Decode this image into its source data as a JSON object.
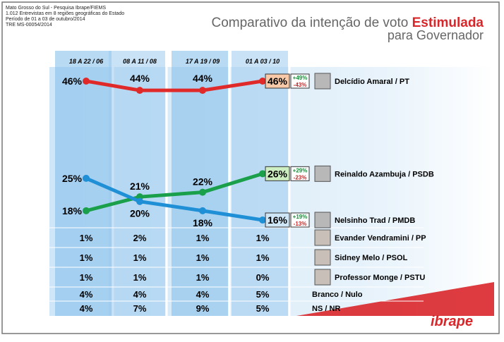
{
  "header": {
    "lines": [
      "Mato Grosso do Sul - Pesquisa Ibrape/FIEMS",
      "1.012 Entrevistas em 8 regiões geográficas do Estado",
      "Período de 01 a 03 de outubro/2014",
      "TRE MS-00054/2014"
    ],
    "logo": "ibrape"
  },
  "chart_data": {
    "type": "line",
    "title": "Comparativo da intenção de voto ",
    "title_emphasis": "Estimulada",
    "subtitle": "para Governador",
    "categories": [
      "18 A 22 / 06",
      "08 A 11 / 08",
      "17 A 19 / 09",
      "01 A 03 / 10"
    ],
    "ylim": [
      16,
      46
    ],
    "series": [
      {
        "name": "Delcídio Amaral / PT",
        "color": "#e02a2a",
        "values": [
          46,
          44,
          44,
          46
        ],
        "value_labels": [
          "46%",
          "44%",
          "44%",
          "46%"
        ],
        "margins": [
          "+49%",
          "-43%"
        ],
        "box": "#f7c9a8"
      },
      {
        "name": "Reinaldo Azambuja / PSDB",
        "color": "#1aa04a",
        "values": [
          18,
          21,
          22,
          26
        ],
        "value_labels": [
          "18%",
          "21%",
          "22%",
          "26%"
        ],
        "margins": [
          "+29%",
          "-23%"
        ],
        "box": "#cdeec0"
      },
      {
        "name": "Nelsinho Trad / PMDB",
        "color": "#1f8fd6",
        "values": [
          25,
          20,
          18,
          16
        ],
        "value_labels": [
          "25%",
          "20%",
          "18%",
          "16%"
        ],
        "margins": [
          "+19%",
          "-13%"
        ],
        "box": "#cfe6f7"
      }
    ],
    "rows": [
      {
        "name": "Evander Vendramini / PP",
        "values": [
          1,
          2,
          1,
          1
        ],
        "value_labels": [
          "1%",
          "2%",
          "1%",
          "1%"
        ]
      },
      {
        "name": "Sidney Melo / PSOL",
        "values": [
          1,
          1,
          1,
          1
        ],
        "value_labels": [
          "1%",
          "1%",
          "1%",
          "1%"
        ]
      },
      {
        "name": "Professor Monge / PSTU",
        "values": [
          1,
          1,
          1,
          0
        ],
        "value_labels": [
          "1%",
          "1%",
          "1%",
          "0%"
        ]
      },
      {
        "name": "Branco / Nulo",
        "values": [
          4,
          4,
          4,
          5
        ],
        "value_labels": [
          "4%",
          "4%",
          "4%",
          "5%"
        ]
      },
      {
        "name": "NS / NR",
        "values": [
          4,
          7,
          9,
          5
        ],
        "value_labels": [
          "4%",
          "7%",
          "9%",
          "5%"
        ]
      }
    ]
  }
}
